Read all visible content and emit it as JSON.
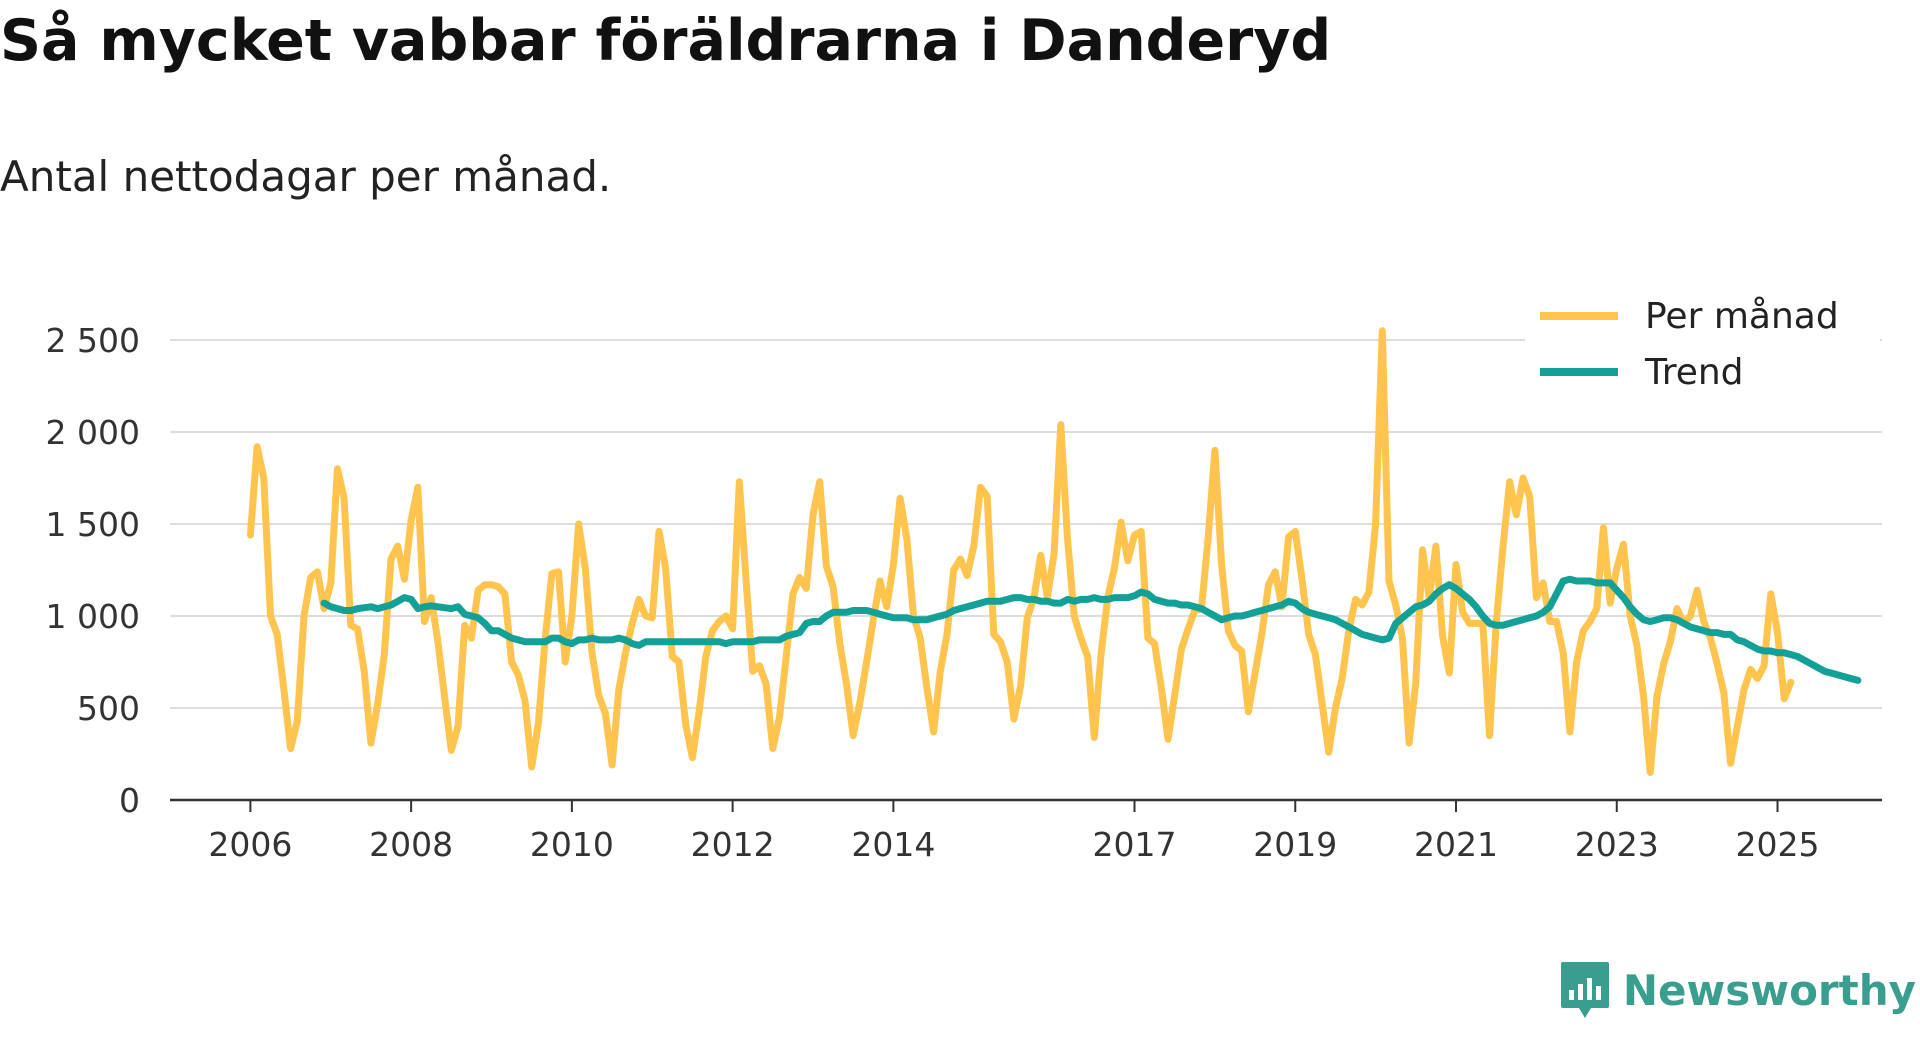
{
  "header": {
    "title": "Så mycket vabbar föräldrarna i Danderyd",
    "subtitle": "Antal nettodagar per månad."
  },
  "brand": {
    "name": "Newsworthy",
    "color": "#3a9e8f"
  },
  "chart_data": {
    "type": "line",
    "title": "Så mycket vabbar föräldrarna i Danderyd",
    "subtitle": "Antal nettodagar per månad.",
    "xlabel": "",
    "ylabel": "",
    "ylim": [
      0,
      2500
    ],
    "yticks": [
      0,
      500,
      1000,
      1500,
      2000,
      2500
    ],
    "ytick_labels": [
      "0",
      "500",
      "1 000",
      "1 500",
      "2 000",
      "2 500"
    ],
    "xticks": [
      2006,
      2008,
      2010,
      2012,
      2014,
      2017,
      2019,
      2021,
      2023,
      2025
    ],
    "xtick_labels": [
      "2006",
      "2008",
      "2010",
      "2012",
      "2014",
      "2017",
      "2019",
      "2021",
      "2023",
      "2025"
    ],
    "xlim": [
      2005,
      2026.3
    ],
    "grid": true,
    "legend": "top-right",
    "series": [
      {
        "name": "Per månad",
        "color": "#ffc44d",
        "x_start": 2006.0,
        "step": 0.0833333,
        "values": [
          1440,
          1920,
          1750,
          1000,
          900,
          600,
          280,
          430,
          1000,
          1210,
          1240,
          1040,
          1180,
          1800,
          1640,
          950,
          930,
          700,
          310,
          520,
          790,
          1310,
          1380,
          1200,
          1520,
          1700,
          970,
          1100,
          860,
          560,
          270,
          400,
          950,
          880,
          1140,
          1170,
          1170,
          1160,
          1120,
          750,
          680,
          540,
          180,
          420,
          870,
          1230,
          1240,
          750,
          1000,
          1500,
          1260,
          800,
          570,
          470,
          190,
          600,
          800,
          960,
          1090,
          1000,
          990,
          1460,
          1260,
          780,
          750,
          410,
          230,
          480,
          780,
          920,
          970,
          1000,
          930,
          1730,
          1200,
          700,
          730,
          630,
          280,
          450,
          780,
          1120,
          1210,
          1150,
          1550,
          1730,
          1270,
          1160,
          850,
          630,
          350,
          530,
          750,
          980,
          1190,
          1050,
          1280,
          1640,
          1420,
          1000,
          880,
          610,
          370,
          700,
          900,
          1250,
          1310,
          1220,
          1380,
          1700,
          1650,
          900,
          860,
          750,
          440,
          620,
          990,
          1100,
          1330,
          1100,
          1340,
          2040,
          1420,
          1000,
          880,
          780,
          340,
          790,
          1100,
          1260,
          1510,
          1300,
          1440,
          1460,
          880,
          850,
          610,
          330,
          570,
          820,
          930,
          1030,
          1040,
          1430,
          1900,
          1280,
          920,
          840,
          810,
          480,
          690,
          900,
          1170,
          1240,
          1050,
          1430,
          1460,
          1200,
          900,
          790,
          530,
          260,
          500,
          660,
          920,
          1090,
          1060,
          1130,
          1500,
          2550,
          1190,
          1060,
          880,
          310,
          640,
          1360,
          1100,
          1380,
          890,
          690,
          1280,
          1020,
          960,
          960,
          960,
          350,
          960,
          1370,
          1730,
          1550,
          1750,
          1650,
          1100,
          1180,
          970,
          970,
          800,
          370,
          750,
          920,
          970,
          1040,
          1480,
          1070,
          1260,
          1390,
          1000,
          840,
          560,
          150,
          560,
          740,
          860,
          1040,
          960,
          1000,
          1140,
          970,
          880,
          740,
          580,
          200,
          400,
          600,
          710,
          660,
          730,
          1120,
          910,
          550,
          640
        ]
      },
      {
        "name": "Trend",
        "color": "#13a096",
        "x_start": 2006.917,
        "step": 0.0833333,
        "values": [
          1070,
          1050,
          1040,
          1030,
          1030,
          1040,
          1045,
          1050,
          1040,
          1050,
          1060,
          1080,
          1100,
          1090,
          1040,
          1050,
          1055,
          1050,
          1045,
          1040,
          1050,
          1010,
          1000,
          990,
          960,
          920,
          920,
          900,
          880,
          870,
          860,
          860,
          860,
          860,
          880,
          880,
          860,
          850,
          870,
          870,
          880,
          870,
          870,
          870,
          880,
          870,
          850,
          840,
          860,
          860,
          860,
          860,
          860,
          860,
          860,
          860,
          860,
          860,
          860,
          860,
          850,
          860,
          860,
          860,
          860,
          870,
          870,
          870,
          870,
          890,
          900,
          910,
          960,
          970,
          970,
          1000,
          1020,
          1020,
          1020,
          1030,
          1030,
          1030,
          1020,
          1010,
          1000,
          990,
          990,
          990,
          980,
          980,
          980,
          990,
          1000,
          1010,
          1030,
          1040,
          1050,
          1060,
          1070,
          1080,
          1080,
          1080,
          1090,
          1100,
          1100,
          1090,
          1090,
          1080,
          1080,
          1070,
          1070,
          1090,
          1080,
          1090,
          1090,
          1100,
          1090,
          1090,
          1100,
          1100,
          1100,
          1110,
          1130,
          1120,
          1090,
          1080,
          1070,
          1070,
          1060,
          1060,
          1050,
          1040,
          1020,
          1000,
          980,
          990,
          1000,
          1000,
          1010,
          1020,
          1030,
          1040,
          1050,
          1060,
          1080,
          1070,
          1040,
          1020,
          1010,
          1000,
          990,
          980,
          960,
          940,
          920,
          900,
          890,
          880,
          870,
          880,
          960,
          990,
          1020,
          1050,
          1060,
          1080,
          1120,
          1150,
          1170,
          1150,
          1120,
          1090,
          1050,
          1000,
          960,
          950,
          950,
          960,
          970,
          980,
          990,
          1000,
          1020,
          1050,
          1120,
          1190,
          1200,
          1190,
          1190,
          1190,
          1180,
          1180,
          1180,
          1140,
          1100,
          1050,
          1010,
          980,
          970,
          980,
          990,
          990,
          980,
          960,
          940,
          930,
          920,
          910,
          910,
          900,
          900,
          870,
          860,
          840,
          820,
          810,
          810,
          800,
          800,
          790,
          780,
          760,
          740,
          720,
          700,
          690,
          680,
          670,
          660,
          650
        ]
      }
    ]
  }
}
